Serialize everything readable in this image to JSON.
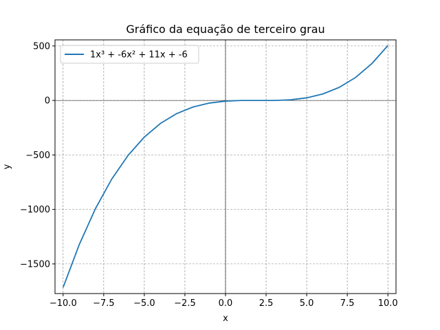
{
  "chart_data": {
    "type": "line",
    "title": "Gráfico da equação de terceiro grau",
    "xlabel": "x",
    "ylabel": "y",
    "xlim": [
      -10.5,
      10.5
    ],
    "ylim": [
      -1772,
      556
    ],
    "xticks": [
      -10.0,
      -7.5,
      -5.0,
      -2.5,
      0.0,
      2.5,
      5.0,
      7.5,
      10.0
    ],
    "xtick_labels": [
      "−10.0",
      "−7.5",
      "−5.0",
      "−2.5",
      "0.0",
      "2.5",
      "5.0",
      "7.5",
      "10.0"
    ],
    "yticks": [
      -1500,
      -1000,
      -500,
      0,
      500
    ],
    "ytick_labels": [
      "−1500",
      "−1000",
      "−500",
      "0",
      "500"
    ],
    "grid": true,
    "legend_position": "top-left",
    "series": [
      {
        "name": "1x³ + -6x² + 11x + -6",
        "color": "#1f77b4",
        "x": [
          -10,
          -9,
          -8,
          -7,
          -6,
          -5,
          -4,
          -3,
          -2,
          -1,
          0,
          1,
          2,
          3,
          4,
          5,
          6,
          7,
          8,
          9,
          10
        ],
        "y": [
          -1716,
          -1320,
          -990,
          -720,
          -504,
          -336,
          -210,
          -120,
          -60,
          -24,
          -6,
          0,
          0,
          0,
          6,
          24,
          60,
          120,
          210,
          336,
          504
        ]
      }
    ]
  }
}
